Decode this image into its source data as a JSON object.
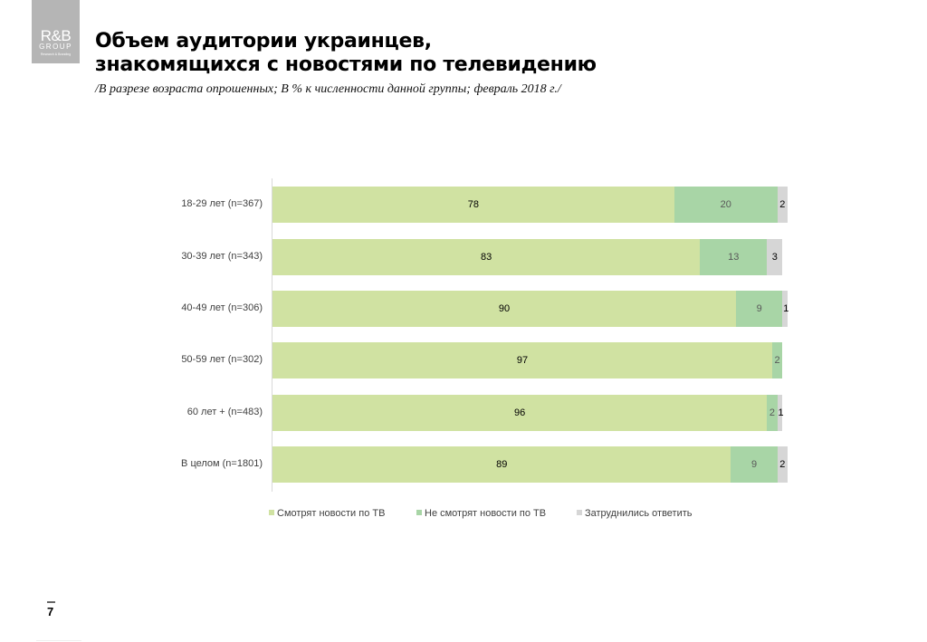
{
  "logo": {
    "main": "R&B",
    "group": "GROUP",
    "tagline": "Research & Branding"
  },
  "title_line1": "Объем аудитории украинцев,",
  "title_line2": "знакомящихся с новостями по телевидению",
  "subtitle": "/В разрезе возраста опрошенных; В % к численности данной группы; февраль 2018 г./",
  "page_number": "7",
  "chart_data": {
    "type": "bar",
    "orientation": "horizontal",
    "stacked": true,
    "categories": [
      "18-29 лет (n=367)",
      "30-39 лет (n=343)",
      "40-49 лет (n=306)",
      "50-59 лет (n=302)",
      "60 лет + (n=483)",
      "В целом (n=1801)"
    ],
    "series": [
      {
        "name": "Смотрят новости по ТВ",
        "color": "#d0e2a2",
        "values": [
          78,
          83,
          90,
          97,
          96,
          89
        ]
      },
      {
        "name": "Не смотрят новости по ТВ",
        "color": "#a8d5a6",
        "values": [
          20,
          13,
          9,
          2,
          2,
          9
        ]
      },
      {
        "name": "Затруднились ответить",
        "color": "#d6d6d6",
        "values": [
          2,
          3,
          1,
          null,
          1,
          2
        ]
      }
    ],
    "xlim": [
      0,
      100
    ],
    "legend": "bottom",
    "grid": false
  }
}
